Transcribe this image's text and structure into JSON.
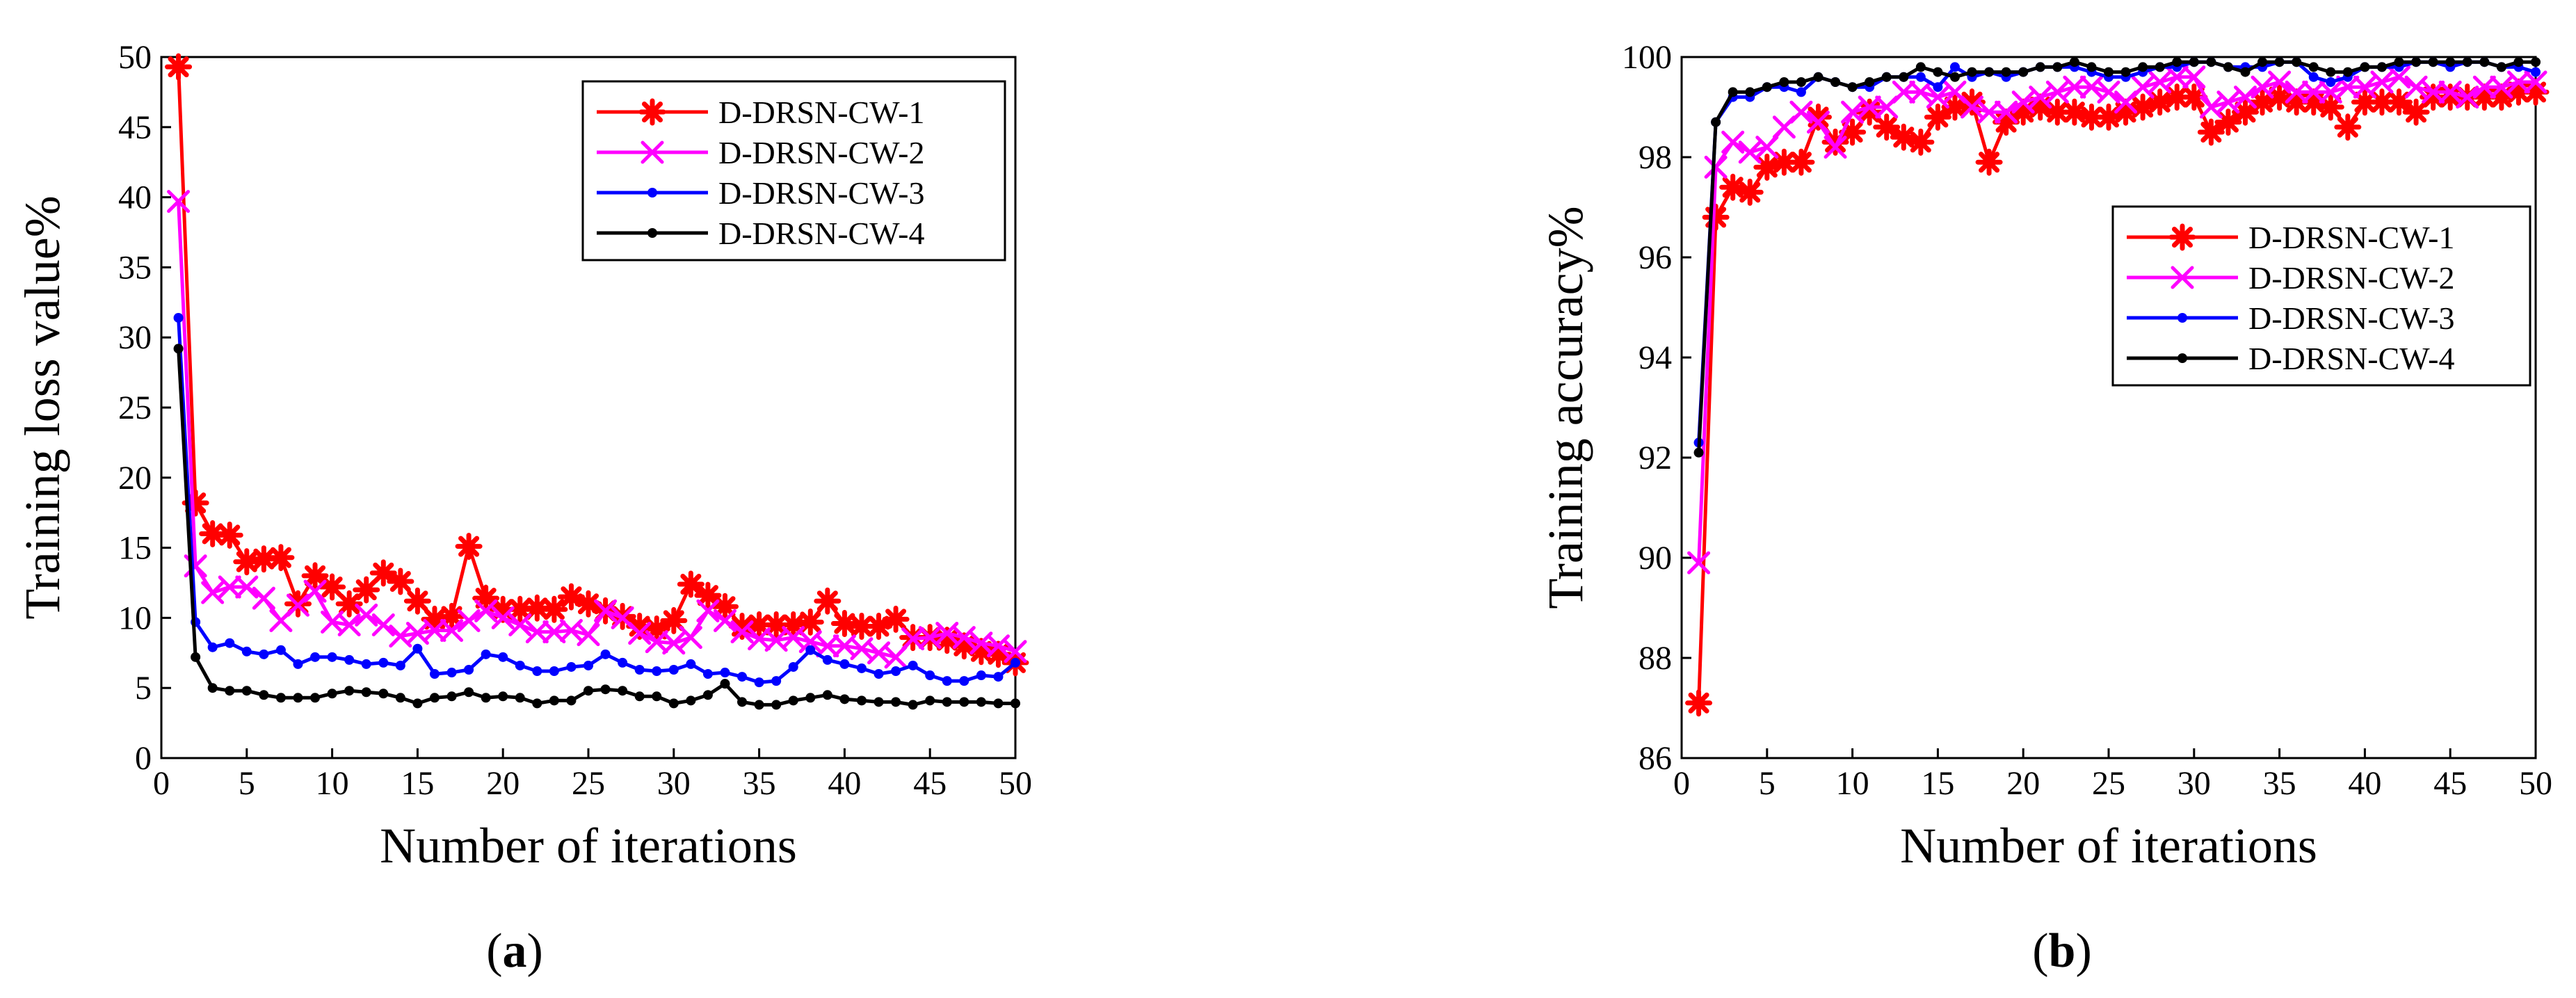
{
  "chart_data": [
    {
      "type": "line",
      "panel_label": "a",
      "xlabel": "Number of iterations",
      "ylabel": "Training loss value%",
      "xlim": [
        0,
        50
      ],
      "ylim": [
        0,
        50
      ],
      "xticks": [
        0,
        5,
        10,
        15,
        20,
        25,
        30,
        35,
        40,
        45,
        50
      ],
      "yticks": [
        0,
        5,
        10,
        15,
        20,
        25,
        30,
        35,
        40,
        45,
        50
      ],
      "legend_position": "top-right",
      "x": [
        1,
        2,
        3,
        4,
        5,
        6,
        7,
        8,
        9,
        10,
        11,
        12,
        13,
        14,
        15,
        16,
        17,
        18,
        19,
        20,
        21,
        22,
        23,
        24,
        25,
        26,
        27,
        28,
        29,
        30,
        31,
        32,
        33,
        34,
        35,
        36,
        37,
        38,
        39,
        40,
        41,
        42,
        43,
        44,
        45,
        46,
        47,
        48,
        49,
        50
      ],
      "series": [
        {
          "name": "D-DRSN-CW-1",
          "color": "#ff0000",
          "marker": "asterisk",
          "values": [
            49.3,
            18.2,
            16.0,
            15.9,
            14.0,
            14.2,
            14.3,
            11.0,
            13.0,
            12.2,
            11.0,
            12.0,
            13.2,
            12.6,
            11.2,
            9.9,
            10.1,
            15.1,
            11.4,
            10.6,
            10.6,
            10.7,
            10.6,
            11.5,
            11.0,
            10.5,
            10.1,
            9.4,
            9.2,
            9.8,
            12.4,
            11.6,
            10.8,
            9.4,
            9.5,
            9.5,
            9.5,
            9.7,
            11.2,
            9.6,
            9.4,
            9.4,
            9.9,
            8.6,
            8.6,
            8.4,
            8.0,
            7.6,
            7.4,
            6.8
          ]
        },
        {
          "name": "D-DRSN-CW-2",
          "color": "#ff00ff",
          "marker": "x",
          "values": [
            39.7,
            13.7,
            11.8,
            12.2,
            12.2,
            11.4,
            9.8,
            10.9,
            11.9,
            9.7,
            9.5,
            10.2,
            9.5,
            8.7,
            8.9,
            9.1,
            9.1,
            9.8,
            10.5,
            10.0,
            9.5,
            9.0,
            9.0,
            9.1,
            8.8,
            10.5,
            10.0,
            8.9,
            8.3,
            8.2,
            8.6,
            10.5,
            9.8,
            9.0,
            8.5,
            8.4,
            8.6,
            8.3,
            8.0,
            8.0,
            7.8,
            7.5,
            7.2,
            8.5,
            8.6,
            8.9,
            8.6,
            8.2,
            8.0,
            7.6
          ]
        },
        {
          "name": "D-DRSN-CW-3",
          "color": "#0000ff",
          "marker": "dot",
          "values": [
            31.4,
            9.7,
            7.9,
            8.2,
            7.6,
            7.4,
            7.7,
            6.7,
            7.2,
            7.2,
            7.0,
            6.7,
            6.8,
            6.6,
            7.8,
            6.0,
            6.1,
            6.3,
            7.4,
            7.2,
            6.6,
            6.2,
            6.2,
            6.5,
            6.6,
            7.4,
            6.8,
            6.3,
            6.2,
            6.3,
            6.7,
            6.0,
            6.1,
            5.8,
            5.4,
            5.5,
            6.5,
            7.7,
            7.0,
            6.7,
            6.4,
            6.0,
            6.2,
            6.6,
            5.9,
            5.5,
            5.5,
            5.9,
            5.8,
            6.8
          ]
        },
        {
          "name": "D-DRSN-CW-4",
          "color": "#000000",
          "marker": "dot",
          "values": [
            29.2,
            7.2,
            5.0,
            4.8,
            4.8,
            4.5,
            4.3,
            4.3,
            4.3,
            4.6,
            4.8,
            4.7,
            4.6,
            4.3,
            3.9,
            4.3,
            4.4,
            4.7,
            4.3,
            4.4,
            4.3,
            3.9,
            4.1,
            4.1,
            4.8,
            4.9,
            4.8,
            4.4,
            4.4,
            3.9,
            4.1,
            4.5,
            5.3,
            4.0,
            3.8,
            3.8,
            4.1,
            4.3,
            4.5,
            4.2,
            4.1,
            4.0,
            4.0,
            3.8,
            4.1,
            4.0,
            4.0,
            4.0,
            3.9,
            3.9
          ]
        }
      ]
    },
    {
      "type": "line",
      "panel_label": "b",
      "xlabel": "Number of iterations",
      "ylabel": "Training accuracy%",
      "xlim": [
        0,
        50
      ],
      "ylim": [
        86,
        100
      ],
      "xticks": [
        0,
        5,
        10,
        15,
        20,
        25,
        30,
        35,
        40,
        45,
        50
      ],
      "yticks": [
        86,
        88,
        90,
        92,
        94,
        96,
        98,
        100
      ],
      "legend_position": "right",
      "x": [
        1,
        2,
        3,
        4,
        5,
        6,
        7,
        8,
        9,
        10,
        11,
        12,
        13,
        14,
        15,
        16,
        17,
        18,
        19,
        20,
        21,
        22,
        23,
        24,
        25,
        26,
        27,
        28,
        29,
        30,
        31,
        32,
        33,
        34,
        35,
        36,
        37,
        38,
        39,
        40,
        41,
        42,
        43,
        44,
        45,
        46,
        47,
        48,
        49,
        50
      ],
      "series": [
        {
          "name": "D-DRSN-CW-1",
          "color": "#ff0000",
          "marker": "asterisk",
          "values": [
            87.1,
            96.8,
            97.4,
            97.3,
            97.8,
            97.9,
            97.9,
            98.8,
            98.3,
            98.5,
            98.9,
            98.6,
            98.4,
            98.3,
            98.8,
            99.0,
            99.1,
            97.9,
            98.7,
            98.9,
            99.0,
            98.9,
            98.9,
            98.8,
            98.8,
            98.9,
            99.0,
            99.1,
            99.2,
            99.2,
            98.5,
            98.7,
            98.9,
            99.1,
            99.2,
            99.1,
            99.1,
            99.0,
            98.6,
            99.1,
            99.1,
            99.1,
            98.9,
            99.2,
            99.2,
            99.2,
            99.2,
            99.2,
            99.3,
            99.3
          ]
        },
        {
          "name": "D-DRSN-CW-2",
          "color": "#ff00ff",
          "marker": "x",
          "values": [
            89.9,
            97.8,
            98.3,
            98.1,
            98.2,
            98.6,
            98.9,
            98.7,
            98.2,
            98.9,
            99.0,
            99.0,
            99.3,
            99.3,
            99.2,
            99.3,
            99.0,
            98.9,
            98.9,
            99.1,
            99.2,
            99.3,
            99.4,
            99.4,
            99.3,
            99.1,
            99.4,
            99.5,
            99.6,
            99.6,
            99.0,
            99.1,
            99.2,
            99.4,
            99.5,
            99.3,
            99.3,
            99.3,
            99.4,
            99.4,
            99.5,
            99.6,
            99.4,
            99.3,
            99.3,
            99.2,
            99.4,
            99.4,
            99.5,
            99.5
          ]
        },
        {
          "name": "D-DRSN-CW-3",
          "color": "#0000ff",
          "marker": "dot",
          "values": [
            92.3,
            98.7,
            99.2,
            99.2,
            99.4,
            99.4,
            99.3,
            99.6,
            99.5,
            99.4,
            99.4,
            99.6,
            99.6,
            99.6,
            99.4,
            99.8,
            99.6,
            99.7,
            99.6,
            99.7,
            99.8,
            99.8,
            99.8,
            99.7,
            99.6,
            99.6,
            99.7,
            99.8,
            99.8,
            99.9,
            99.9,
            99.8,
            99.8,
            99.8,
            99.9,
            99.9,
            99.6,
            99.5,
            99.6,
            99.8,
            99.8,
            99.8,
            99.9,
            99.9,
            99.8,
            99.9,
            99.9,
            99.8,
            99.8,
            99.7
          ]
        },
        {
          "name": "D-DRSN-CW-4",
          "color": "#000000",
          "marker": "dot",
          "values": [
            92.1,
            98.7,
            99.3,
            99.3,
            99.4,
            99.5,
            99.5,
            99.6,
            99.5,
            99.4,
            99.5,
            99.6,
            99.6,
            99.8,
            99.7,
            99.6,
            99.7,
            99.7,
            99.7,
            99.7,
            99.8,
            99.8,
            99.9,
            99.8,
            99.7,
            99.7,
            99.8,
            99.8,
            99.9,
            99.9,
            99.9,
            99.8,
            99.7,
            99.9,
            99.9,
            99.9,
            99.8,
            99.7,
            99.7,
            99.8,
            99.8,
            99.9,
            99.9,
            99.9,
            99.9,
            99.9,
            99.9,
            99.8,
            99.9,
            99.9
          ]
        }
      ]
    }
  ]
}
